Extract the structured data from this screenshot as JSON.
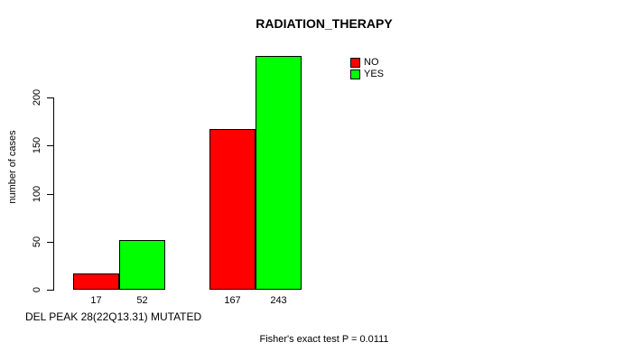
{
  "chart_data": {
    "type": "bar",
    "title": "RADIATION_THERAPY",
    "ylabel": "number of cases",
    "xlabel": "DEL PEAK 28(22Q13.31) MUTATED",
    "footnote": "Fisher's exact test P = 0.0111",
    "categories": [
      "",
      ""
    ],
    "series": [
      {
        "name": "NO",
        "color": "#ff0000",
        "values": [
          17,
          167
        ]
      },
      {
        "name": "YES",
        "color": "#00ff00",
        "values": [
          52,
          243
        ]
      }
    ],
    "bar_count_labels": [
      [
        17,
        52
      ],
      [
        167,
        243
      ]
    ],
    "y_ticks": [
      0,
      50,
      100,
      150,
      200
    ],
    "ylim": [
      0,
      243
    ],
    "grid": false,
    "legend": {
      "position": "top-right",
      "entries": [
        {
          "label": "NO",
          "color": "#ff0000"
        },
        {
          "label": "YES",
          "color": "#00ff00"
        }
      ]
    }
  }
}
